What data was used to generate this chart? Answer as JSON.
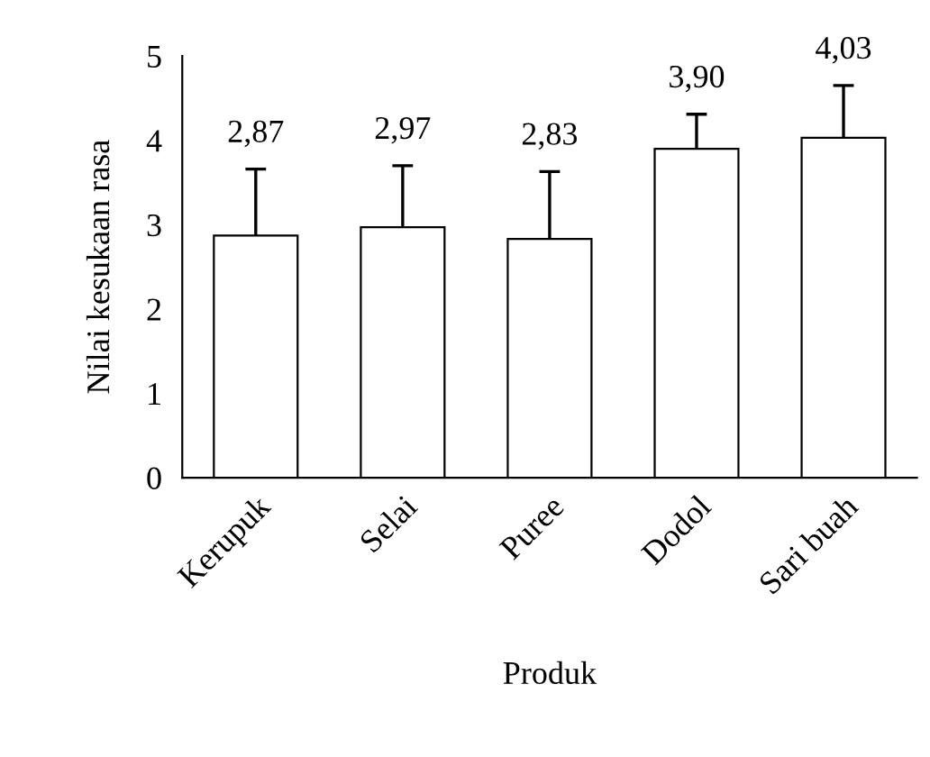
{
  "chart_data": {
    "type": "bar",
    "categories": [
      "Kerupuk",
      "Selai",
      "Puree",
      "Dodol",
      "Sari buah"
    ],
    "values": [
      2.87,
      2.97,
      2.83,
      3.9,
      4.03
    ],
    "value_labels": [
      "2,87",
      "2,97",
      "2,83",
      "3,90",
      "4,03"
    ],
    "errors": [
      [
        2.87,
        3.66
      ],
      [
        2.97,
        3.7
      ],
      [
        2.83,
        3.63
      ],
      [
        3.9,
        4.31
      ],
      [
        4.03,
        4.65
      ]
    ],
    "color": "#ffffff",
    "xlabel": "Produk",
    "ylabel": "Nilai kesukaan rasa",
    "ylim": [
      0,
      5
    ],
    "yticks": [
      0,
      1,
      2,
      3,
      4,
      5
    ],
    "grid": false,
    "legend": false
  }
}
